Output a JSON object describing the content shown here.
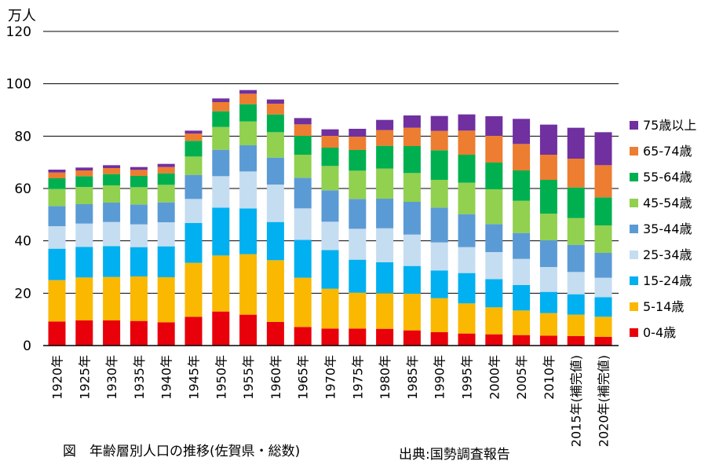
{
  "unit_label": "万人",
  "caption": "図　年齢層別人口の推移(佐賀県・総数)",
  "source": "出典:国勢調査報告",
  "chart_data": {
    "type": "bar",
    "stacked": true,
    "categories": [
      "1920年",
      "1925年",
      "1930年",
      "1935年",
      "1940年",
      "1945年",
      "1950年",
      "1955年",
      "1960年",
      "1965年",
      "1970年",
      "1975年",
      "1980年",
      "1985年",
      "1990年",
      "1995年",
      "2000年",
      "2005年",
      "2010年",
      "2015年(補完値)",
      "2020年(補完値)"
    ],
    "ylim": [
      0,
      120
    ],
    "yticks": [
      0,
      20,
      40,
      60,
      80,
      100,
      120
    ],
    "ylabel": "万人",
    "grid": true,
    "legend_position": "right",
    "series": [
      {
        "name": "0-4歳",
        "color": "#e8000b",
        "values": [
          9.2,
          9.6,
          9.6,
          9.4,
          8.9,
          11.0,
          13.0,
          11.8,
          9.0,
          7.1,
          6.5,
          6.5,
          6.4,
          5.8,
          5.1,
          4.6,
          4.3,
          4.0,
          3.8,
          3.6,
          3.3
        ]
      },
      {
        "name": "5-14歳",
        "color": "#fbb800",
        "values": [
          15.8,
          16.4,
          16.6,
          17.0,
          17.2,
          20.6,
          21.4,
          23.1,
          23.6,
          18.8,
          15.2,
          13.7,
          13.6,
          14.0,
          13.0,
          11.5,
          10.3,
          9.4,
          8.6,
          8.2,
          7.7
        ]
      },
      {
        "name": "15-24歳",
        "color": "#00b0f0",
        "values": [
          12.0,
          11.7,
          11.8,
          11.2,
          11.8,
          15.2,
          18.3,
          17.5,
          14.6,
          14.5,
          14.8,
          12.6,
          11.8,
          10.6,
          10.6,
          11.6,
          10.8,
          9.7,
          8.1,
          7.8,
          7.5
        ]
      },
      {
        "name": "25-34歳",
        "color": "#c5ddf1",
        "values": [
          8.6,
          8.9,
          9.2,
          8.7,
          9.2,
          9.2,
          12.0,
          14.1,
          14.3,
          12.0,
          10.8,
          11.8,
          13.0,
          12.0,
          10.7,
          9.9,
          10.3,
          10.0,
          9.5,
          8.5,
          7.4
        ]
      },
      {
        "name": "35-44歳",
        "color": "#5b9bd5",
        "values": [
          7.7,
          7.4,
          7.4,
          7.6,
          7.6,
          9.2,
          10.1,
          10.0,
          10.3,
          11.7,
          12.0,
          11.4,
          11.3,
          12.5,
          13.3,
          12.6,
          10.7,
          9.9,
          10.2,
          10.4,
          9.5
        ]
      },
      {
        "name": "45-54歳",
        "color": "#92d050",
        "values": [
          6.5,
          6.6,
          6.6,
          6.6,
          6.7,
          7.0,
          8.7,
          9.1,
          9.7,
          8.8,
          9.3,
          10.8,
          11.5,
          11.0,
          10.6,
          12.0,
          13.3,
          12.3,
          10.2,
          10.2,
          10.5
        ]
      },
      {
        "name": "55-64歳",
        "color": "#00b050",
        "values": [
          4.1,
          4.1,
          4.3,
          4.3,
          4.4,
          6.0,
          6.0,
          6.6,
          6.8,
          7.2,
          7.0,
          7.9,
          8.7,
          10.3,
          11.3,
          10.7,
          10.2,
          11.6,
          12.9,
          11.7,
          10.7
        ]
      },
      {
        "name": "65-74歳",
        "color": "#ed7d31",
        "values": [
          2.2,
          2.2,
          2.3,
          2.3,
          2.4,
          2.8,
          3.5,
          4.0,
          4.1,
          4.4,
          4.5,
          5.1,
          6.0,
          7.0,
          7.4,
          9.2,
          10.2,
          10.1,
          9.6,
          11.0,
          12.3
        ]
      },
      {
        "name": "75歳以上",
        "color": "#7030a0",
        "values": [
          1.1,
          1.1,
          1.1,
          1.1,
          1.2,
          1.1,
          1.4,
          1.4,
          1.6,
          2.4,
          2.5,
          3.0,
          3.9,
          4.7,
          5.7,
          6.2,
          7.5,
          9.6,
          11.5,
          11.8,
          12.6
        ]
      }
    ]
  }
}
